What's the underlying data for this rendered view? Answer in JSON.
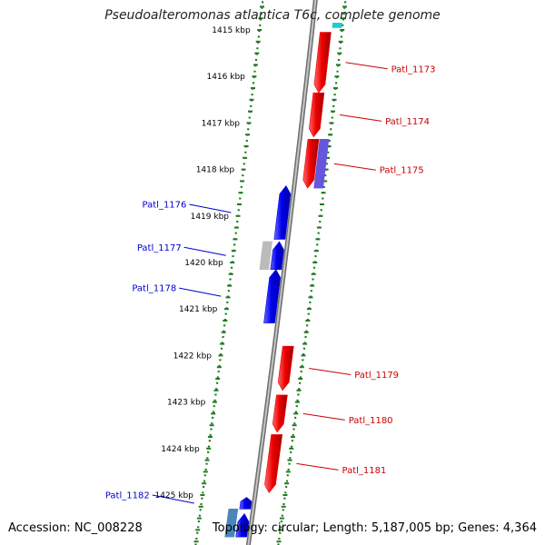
{
  "title": "Pseudoalteromonas atlantica T6c, complete genome",
  "footer": {
    "accession": "Accession: NC_008228",
    "stats": "Topology: circular; Length: 5,187,005 bp; Genes: 4,364"
  },
  "colors": {
    "background": "#ffffff",
    "backbone": "#9a9a9a",
    "tick_track": "#1f7a1f",
    "forward_gene": "#ee0000",
    "reverse_gene": "#0000ee",
    "forward_label": "#cc0000",
    "reverse_label": "#0000cc"
  },
  "scale": {
    "unit": "kbp",
    "labels": [
      "1415 kbp",
      "1416 kbp",
      "1417 kbp",
      "1418 kbp",
      "1419 kbp",
      "1420 kbp",
      "1421 kbp",
      "1422 kbp",
      "1423 kbp",
      "1424 kbp",
      "1425 kbp"
    ]
  },
  "genes": [
    {
      "name": "Patl_1173",
      "strand": "forward",
      "start_kbp": 1415.05,
      "end_kbp": 1416.35,
      "color": "#ee0000"
    },
    {
      "name": "Patl_1174",
      "strand": "forward",
      "start_kbp": 1416.35,
      "end_kbp": 1417.3,
      "color": "#ee0000"
    },
    {
      "name": "Patl_1175",
      "strand": "forward",
      "start_kbp": 1417.35,
      "end_kbp": 1418.4,
      "color": "#ee0000"
    },
    {
      "name": "",
      "strand": "forward-outer",
      "start_kbp": 1417.35,
      "end_kbp": 1418.4,
      "color": "#6655dd"
    },
    {
      "name": "Patl_1176",
      "strand": "reverse",
      "start_kbp": 1418.35,
      "end_kbp": 1419.5,
      "color": "#0000ee"
    },
    {
      "name": "Patl_1177",
      "strand": "reverse",
      "start_kbp": 1419.55,
      "end_kbp": 1420.15,
      "color": "#0000ee"
    },
    {
      "name": "",
      "strand": "reverse-outer",
      "start_kbp": 1419.55,
      "end_kbp": 1420.15,
      "color": "#bbbbbb"
    },
    {
      "name": "Patl_1178",
      "strand": "reverse",
      "start_kbp": 1420.15,
      "end_kbp": 1421.3,
      "color": "#0000ee"
    },
    {
      "name": "Patl_1179",
      "strand": "forward",
      "start_kbp": 1421.8,
      "end_kbp": 1422.75,
      "color": "#ee0000"
    },
    {
      "name": "Patl_1180",
      "strand": "forward",
      "start_kbp": 1422.85,
      "end_kbp": 1423.65,
      "color": "#ee0000"
    },
    {
      "name": "Patl_1181",
      "strand": "forward",
      "start_kbp": 1423.7,
      "end_kbp": 1424.95,
      "color": "#ee0000"
    },
    {
      "name": "Patl_1182",
      "strand": "reverse",
      "start_kbp": 1425.05,
      "end_kbp": 1425.3,
      "color": "#0000ee"
    },
    {
      "name": "",
      "strand": "reverse",
      "start_kbp": 1425.4,
      "end_kbp": 1425.9,
      "color": "#0000ee"
    },
    {
      "name": "",
      "strand": "reverse-outer",
      "start_kbp": 1425.3,
      "end_kbp": 1425.9,
      "color": "#4a86b8"
    },
    {
      "name": "",
      "strand": "forward-outer",
      "start_kbp": 1414.85,
      "end_kbp": 1414.95,
      "color": "#22cccc"
    }
  ]
}
